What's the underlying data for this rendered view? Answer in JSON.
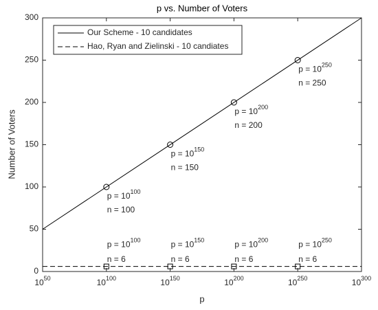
{
  "chart_data": {
    "type": "line",
    "title": "p vs. Number of Voters",
    "x_label": "p",
    "y_label": "Number of Voters",
    "x_log_scale": true,
    "xlim": [
      1e+50,
      1e+300
    ],
    "xticks": [
      {
        "value": 1e+50,
        "label": "10^50"
      },
      {
        "value": 1e+100,
        "label": "10^100"
      },
      {
        "value": 1e+150,
        "label": "10^150"
      },
      {
        "value": 1e+200,
        "label": "10^200"
      },
      {
        "value": 1e+250,
        "label": "10^250"
      },
      {
        "value": 1e+300,
        "label": "10^300"
      }
    ],
    "ylim": [
      0,
      300
    ],
    "yticks": [
      0,
      50,
      100,
      150,
      200,
      250,
      300
    ],
    "grid": false,
    "legend_position": "top-left",
    "series": [
      {
        "name": "Our Scheme - 10 candidates",
        "color": "#000000",
        "line_style": "solid",
        "marker": "circle",
        "x": [
          1e+50,
          1e+300
        ],
        "values": [
          50,
          300
        ],
        "markers": {
          "x": [
            1e+100,
            1e+150,
            1e+200,
            1e+250
          ],
          "values": [
            100,
            150,
            200,
            250
          ]
        },
        "point_labels": [
          [
            "p = 10^100",
            "n = 100"
          ],
          [
            "p = 10^150",
            "n = 150"
          ],
          [
            "p = 10^200",
            "n = 200"
          ],
          [
            "p = 10^250",
            "n = 250"
          ]
        ]
      },
      {
        "name": "Hao, Ryan and Zielinski - 10 candiates",
        "color": "#000000",
        "line_style": "dashed",
        "marker": "square",
        "x": [
          1e+50,
          1e+300
        ],
        "values": [
          6,
          6
        ],
        "markers": {
          "x": [
            1e+100,
            1e+150,
            1e+200,
            1e+250
          ],
          "values": [
            6,
            6,
            6,
            6
          ]
        },
        "point_labels": [
          [
            "p = 10^100",
            "n = 6"
          ],
          [
            "p = 10^150",
            "n = 6"
          ],
          [
            "p = 10^200",
            "n = 6"
          ],
          [
            "p = 10^250",
            "n = 6"
          ]
        ]
      }
    ]
  }
}
